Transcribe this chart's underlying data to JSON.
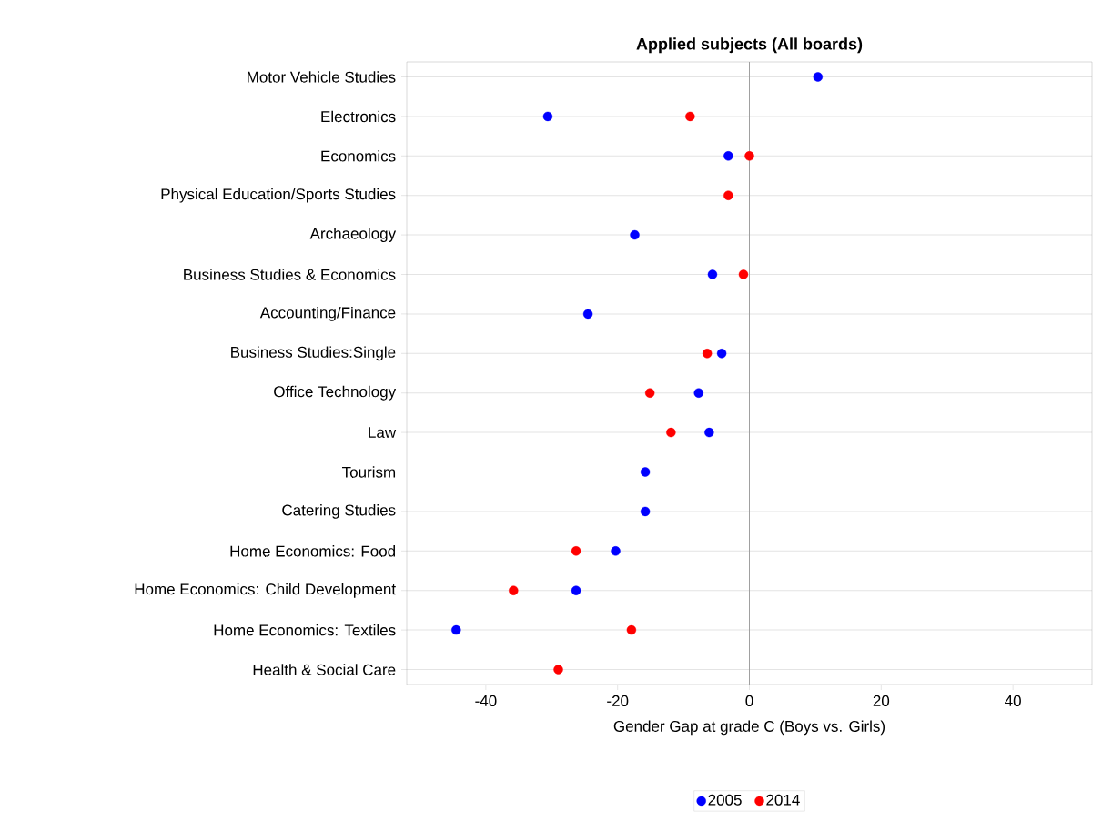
{
  "chart_data": {
    "type": "scatter",
    "title": "Applied subjects (All boards)",
    "xlabel": "Gender Gap at grade C (Boys vs. Girls)",
    "categories": [
      "Motor Vehicle Studies",
      "Electronics",
      "Economics",
      "Physical Education/Sports Studies",
      "Archaeology",
      "Business Studies & Economics",
      "Accounting/Finance",
      "Business  Studies:Single",
      "Office Technology",
      "Law",
      "Tourism",
      "Catering Studies",
      "Home Economics: Food",
      "Home Economics: Child Development",
      "Home Economics: Textiles",
      "Health & Social Care"
    ],
    "series": [
      {
        "name": "2005",
        "color": "#0000ff",
        "values": [
          10.4,
          -30.6,
          -3.2,
          null,
          -17.4,
          -5.6,
          -24.5,
          -4.2,
          -7.7,
          -6.1,
          -15.8,
          -15.8,
          -20.3,
          -26.3,
          -44.5,
          null
        ]
      },
      {
        "name": "2014",
        "color": "#ff0000",
        "values": [
          null,
          -9.0,
          0.0,
          -3.2,
          null,
          -0.9,
          null,
          -6.4,
          -15.1,
          -11.9,
          null,
          null,
          -26.3,
          -35.8,
          -17.9,
          -29.0
        ]
      }
    ],
    "xlim": [
      -52,
      52
    ],
    "xticks": [
      -40,
      -20,
      0,
      20,
      40
    ],
    "ref_lines": [
      {
        "axis": "x",
        "value": 0,
        "color": "#a0a0a0"
      }
    ],
    "grid": "y",
    "legend": "bottom",
    "orientation": "horizontal"
  }
}
